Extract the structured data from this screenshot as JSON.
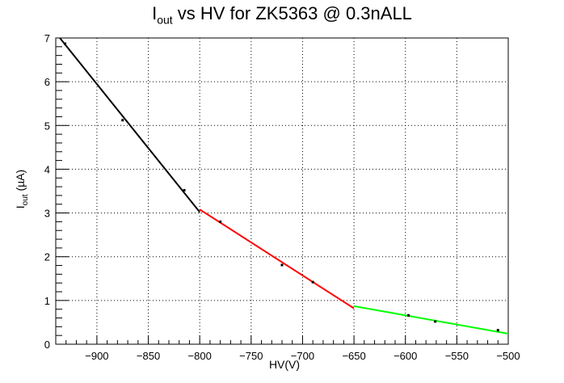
{
  "chart_data": {
    "type": "scatter",
    "title_main": "I",
    "title_sub": "out",
    "title_rest": " vs HV for ZK5363 @ 0.3nALL",
    "xlabel": "HV(V)",
    "ylabel_main": "I",
    "ylabel_sub": "out",
    "ylabel_rest": " (µA)",
    "xlim": [
      -940,
      -500
    ],
    "ylim": [
      0,
      7
    ],
    "xticks": [
      -900,
      -850,
      -800,
      -750,
      -700,
      -650,
      -600,
      -550,
      -500
    ],
    "xtick_labels": [
      "−900",
      "−850",
      "−800",
      "−750",
      "−700",
      "−650",
      "−600",
      "−550",
      "−500"
    ],
    "yticks": [
      0,
      1,
      2,
      3,
      4,
      5,
      6,
      7
    ],
    "ytick_labels": [
      "0",
      "1",
      "2",
      "3",
      "4",
      "5",
      "6",
      "7"
    ],
    "grid": true,
    "points": [
      {
        "x": -931,
        "y": 6.87
      },
      {
        "x": -875,
        "y": 5.12
      },
      {
        "x": -815,
        "y": 3.52
      },
      {
        "x": -780,
        "y": 2.8
      },
      {
        "x": -720,
        "y": 1.81
      },
      {
        "x": -690,
        "y": 1.42
      },
      {
        "x": -597,
        "y": 0.66
      },
      {
        "x": -571,
        "y": 0.52
      },
      {
        "x": -510,
        "y": 0.32
      }
    ],
    "fits": [
      {
        "color": "#000000",
        "x": [
          -936,
          -800
        ],
        "y": [
          7.0,
          3.02
        ]
      },
      {
        "color": "#ff0000",
        "x": [
          -800,
          -650
        ],
        "y": [
          3.08,
          0.82
        ]
      },
      {
        "color": "#00ff00",
        "x": [
          -650,
          -500
        ],
        "y": [
          0.87,
          0.24
        ]
      }
    ]
  }
}
